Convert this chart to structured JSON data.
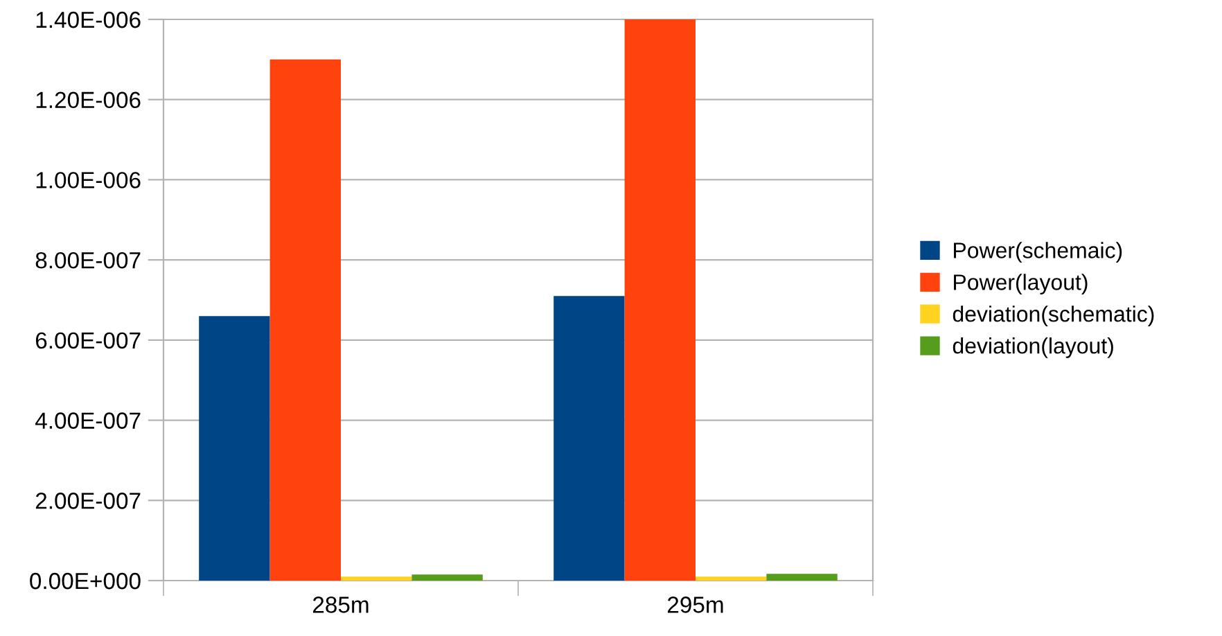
{
  "chart_data": {
    "type": "bar",
    "categories": [
      "285m",
      "295m"
    ],
    "series": [
      {
        "name": "Power(schemaic)",
        "color": "#004586",
        "values": [
          6.6e-07,
          7.1e-07
        ]
      },
      {
        "name": "Power(layout)",
        "color": "#ff420e",
        "values": [
          1.3e-06,
          1.4e-06
        ]
      },
      {
        "name": "deviation(schematic)",
        "color": "#ffd320",
        "values": [
          1e-08,
          1e-08
        ]
      },
      {
        "name": "deviation(layout)",
        "color": "#579d1c",
        "values": [
          1.5e-08,
          1.7e-08
        ]
      }
    ],
    "ylim": [
      0,
      1.4e-06
    ],
    "yticks": [
      {
        "value": 0,
        "label": "0.00E+000"
      },
      {
        "value": 2e-07,
        "label": "2.00E-007"
      },
      {
        "value": 4e-07,
        "label": "4.00E-007"
      },
      {
        "value": 6e-07,
        "label": "6.00E-007"
      },
      {
        "value": 8e-07,
        "label": "8.00E-007"
      },
      {
        "value": 1e-06,
        "label": "1.00E-006"
      },
      {
        "value": 1.2e-06,
        "label": "1.20E-006"
      },
      {
        "value": 1.4e-06,
        "label": "1.40E-006"
      }
    ],
    "grid": "y",
    "legend": "right"
  }
}
